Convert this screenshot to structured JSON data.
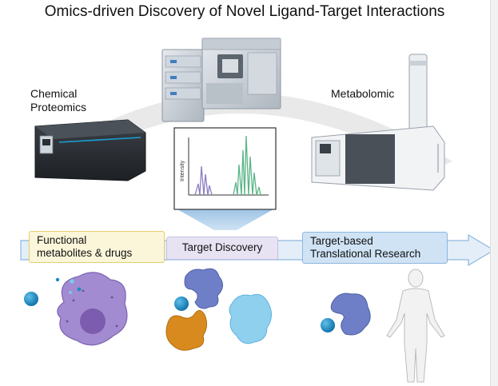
{
  "title": "Omics-driven Discovery of Novel Ligand-Target Interactions",
  "instruments": {
    "chemical_proteomics": "Chemical\nProteomics",
    "metabolomics": "Metabolomic"
  },
  "spectrum": {
    "ylabel": "Intensity"
  },
  "pipeline": {
    "stages": [
      {
        "label": "Functional\nmetabolites & drugs",
        "color": "#fbf6da"
      },
      {
        "label": "Target Discovery",
        "color": "#e7e3f3"
      },
      {
        "label": "Target-based\nTranslational Research",
        "color": "#cfe3f5"
      }
    ]
  },
  "colors": {
    "arc": "#e9e9e9",
    "ligand": "#1a8bc4",
    "cell": "#a28bd0",
    "nucleus": "#7b5cae",
    "protein_purple": "#6f7fc7",
    "protein_orange": "#d88a1e",
    "protein_blue": "#8fd0ef"
  }
}
